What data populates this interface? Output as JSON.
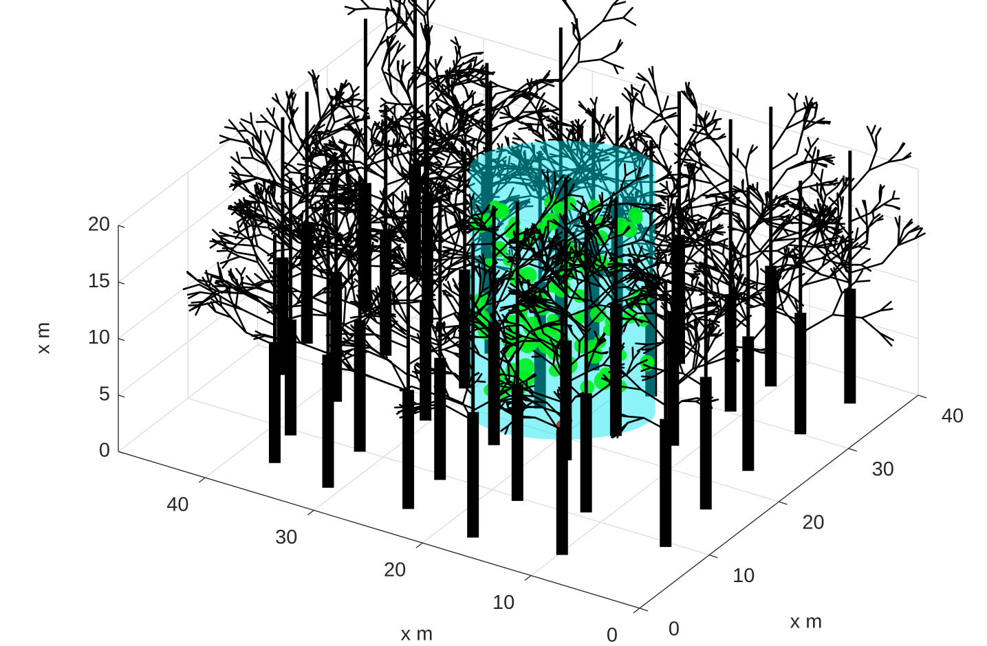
{
  "chart_data": {
    "type": "scene3d",
    "xlabel": "x m",
    "ylabel": "x m",
    "zlabel": "x m",
    "xlim": [
      0,
      48
    ],
    "ylim": [
      0,
      40
    ],
    "zlim": [
      0,
      20
    ],
    "xticks": [
      0,
      10,
      20,
      30,
      40
    ],
    "yticks": [
      0,
      10,
      20,
      30,
      40
    ],
    "zticks": [
      0,
      5,
      10,
      15,
      20
    ],
    "grid": true
  }
}
